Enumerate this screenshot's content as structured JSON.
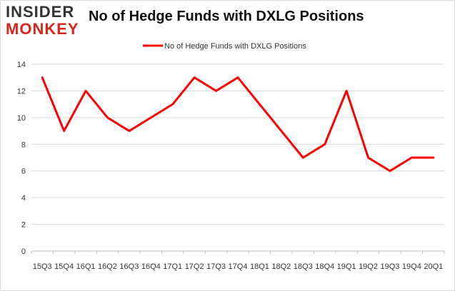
{
  "logo": {
    "line1": "INSIDER",
    "line2": "MONKEY"
  },
  "chart_data": {
    "type": "line",
    "title": "No of Hedge Funds with DXLG Positions",
    "xlabel": "",
    "ylabel": "",
    "categories": [
      "15Q3",
      "15Q4",
      "16Q1",
      "16Q2",
      "16Q3",
      "16Q4",
      "17Q1",
      "17Q2",
      "17Q3",
      "17Q4",
      "18Q1",
      "18Q2",
      "18Q3",
      "18Q4",
      "19Q1",
      "19Q2",
      "19Q3",
      "19Q4",
      "20Q1"
    ],
    "series": [
      {
        "name": "No of Hedge Funds with DXLG Positions",
        "color": "#ff0000",
        "values": [
          13,
          9,
          12,
          10,
          9,
          10,
          11,
          13,
          12,
          13,
          11,
          9,
          7,
          8,
          12,
          7,
          6,
          7,
          7
        ]
      }
    ],
    "ylim": [
      0,
      14
    ],
    "yticks": [
      0,
      2,
      4,
      6,
      8,
      10,
      12,
      14
    ],
    "grid": true,
    "legend_position": "top"
  }
}
